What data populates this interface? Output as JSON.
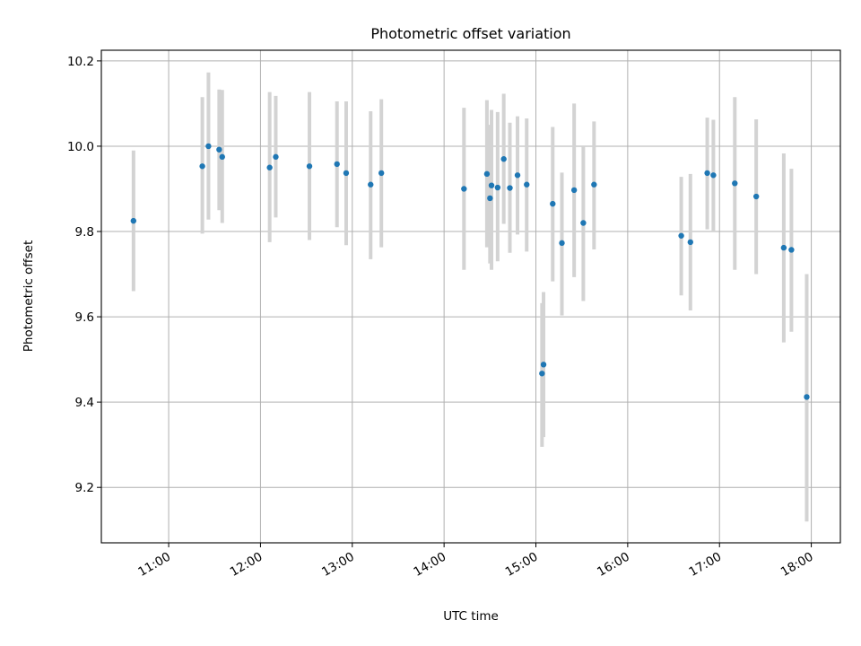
{
  "chart_data": {
    "type": "scatter",
    "title": "Photometric offset variation",
    "xlabel": "UTC time",
    "ylabel": "Photometric offset",
    "xlim": [
      "10:16",
      "18:19"
    ],
    "ylim": [
      9.07,
      10.225
    ],
    "xticks": [
      "11:00",
      "12:00",
      "13:00",
      "14:00",
      "15:00",
      "16:00",
      "17:00",
      "18:00"
    ],
    "yticks": [
      9.2,
      9.4,
      9.6,
      9.8,
      10.0,
      10.2
    ],
    "ytick_labels": [
      "9.2",
      "9.4",
      "9.6",
      "9.8",
      "10.0",
      "10.2"
    ],
    "grid": true,
    "colors": {
      "point": "#1f77b4",
      "errorbar": "#d3d3d3",
      "grid": "#b0b0b0"
    },
    "series": [
      {
        "points": [
          {
            "t": "10:37",
            "y": 9.825,
            "lo": 9.66,
            "hi": 9.99
          },
          {
            "t": "11:22",
            "y": 9.953,
            "lo": 9.795,
            "hi": 10.115
          },
          {
            "t": "11:26",
            "y": 10.0,
            "lo": 9.828,
            "hi": 10.173
          },
          {
            "t": "11:33",
            "y": 9.992,
            "lo": 9.85,
            "hi": 10.133
          },
          {
            "t": "11:35",
            "y": 9.975,
            "lo": 9.82,
            "hi": 10.132
          },
          {
            "t": "12:06",
            "y": 9.95,
            "lo": 9.775,
            "hi": 10.127
          },
          {
            "t": "12:10",
            "y": 9.975,
            "lo": 9.833,
            "hi": 10.118
          },
          {
            "t": "12:32",
            "y": 9.953,
            "lo": 9.78,
            "hi": 10.127
          },
          {
            "t": "12:50",
            "y": 9.958,
            "lo": 9.81,
            "hi": 10.105
          },
          {
            "t": "12:56",
            "y": 9.937,
            "lo": 9.768,
            "hi": 10.105
          },
          {
            "t": "13:12",
            "y": 9.91,
            "lo": 9.735,
            "hi": 10.082
          },
          {
            "t": "13:19",
            "y": 9.937,
            "lo": 9.763,
            "hi": 10.11
          },
          {
            "t": "14:13",
            "y": 9.9,
            "lo": 9.71,
            "hi": 10.09
          },
          {
            "t": "14:28",
            "y": 9.935,
            "lo": 9.763,
            "hi": 10.108
          },
          {
            "t": "14:30",
            "y": 9.878,
            "lo": 9.725,
            "hi": 10.05
          },
          {
            "t": "14:31",
            "y": 9.908,
            "lo": 9.71,
            "hi": 10.085
          },
          {
            "t": "14:35",
            "y": 9.903,
            "lo": 9.73,
            "hi": 10.08
          },
          {
            "t": "14:39",
            "y": 9.97,
            "lo": 9.818,
            "hi": 10.123
          },
          {
            "t": "14:43",
            "y": 9.902,
            "lo": 9.75,
            "hi": 10.055
          },
          {
            "t": "14:48",
            "y": 9.932,
            "lo": 9.793,
            "hi": 10.07
          },
          {
            "t": "14:54",
            "y": 9.91,
            "lo": 9.753,
            "hi": 10.065
          },
          {
            "t": "15:04",
            "y": 9.467,
            "lo": 9.295,
            "hi": 9.632
          },
          {
            "t": "15:05",
            "y": 9.488,
            "lo": 9.318,
            "hi": 9.658
          },
          {
            "t": "15:11",
            "y": 9.865,
            "lo": 9.683,
            "hi": 10.045
          },
          {
            "t": "15:17",
            "y": 9.773,
            "lo": 9.603,
            "hi": 9.938
          },
          {
            "t": "15:25",
            "y": 9.897,
            "lo": 9.693,
            "hi": 10.1
          },
          {
            "t": "15:31",
            "y": 9.82,
            "lo": 9.637,
            "hi": 10.0
          },
          {
            "t": "15:38",
            "y": 9.91,
            "lo": 9.758,
            "hi": 10.058
          },
          {
            "t": "16:35",
            "y": 9.79,
            "lo": 9.65,
            "hi": 9.928
          },
          {
            "t": "16:41",
            "y": 9.775,
            "lo": 9.615,
            "hi": 9.935
          },
          {
            "t": "16:52",
            "y": 9.937,
            "lo": 9.805,
            "hi": 10.067
          },
          {
            "t": "16:56",
            "y": 9.932,
            "lo": 9.8,
            "hi": 10.062
          },
          {
            "t": "17:10",
            "y": 9.913,
            "lo": 9.71,
            "hi": 10.115
          },
          {
            "t": "17:24",
            "y": 9.882,
            "lo": 9.7,
            "hi": 10.063
          },
          {
            "t": "17:42",
            "y": 9.762,
            "lo": 9.54,
            "hi": 9.983
          },
          {
            "t": "17:47",
            "y": 9.757,
            "lo": 9.565,
            "hi": 9.947
          },
          {
            "t": "17:57",
            "y": 9.412,
            "lo": 9.12,
            "hi": 9.7
          }
        ]
      }
    ]
  }
}
